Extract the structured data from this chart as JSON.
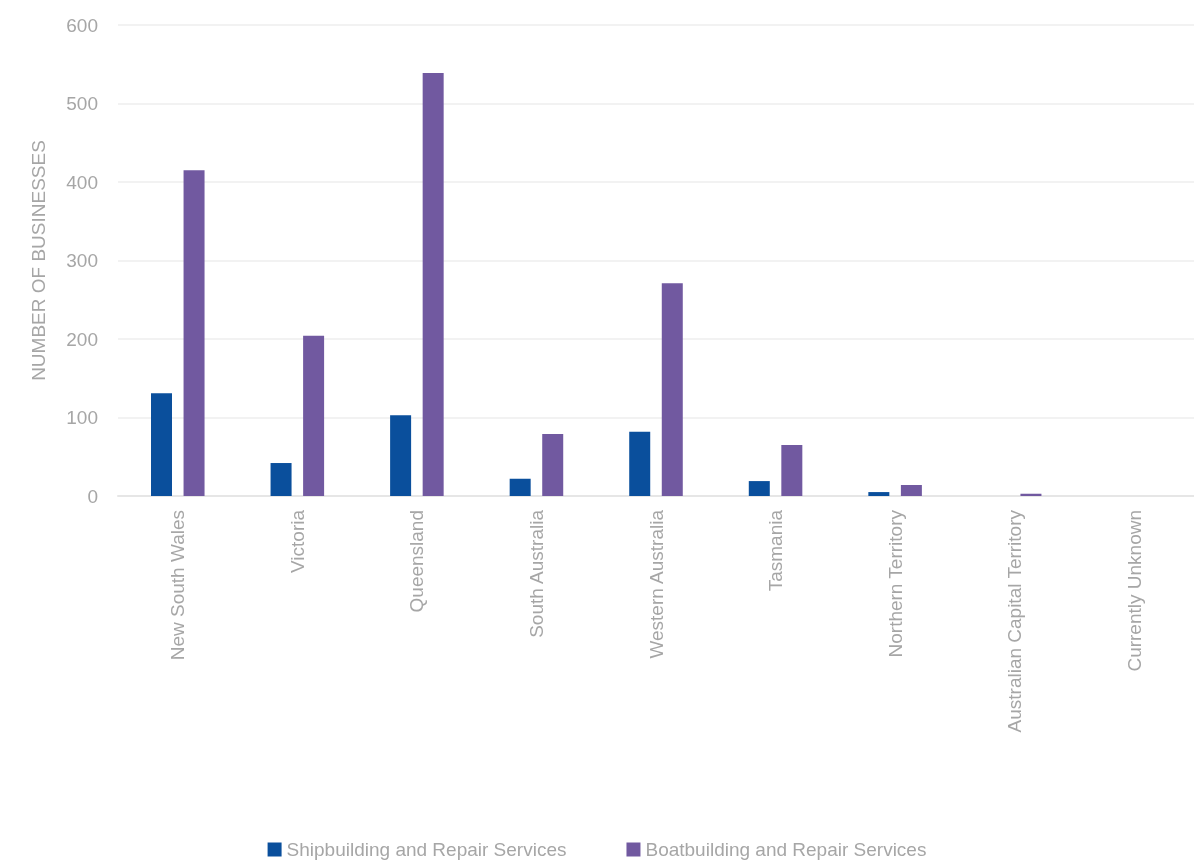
{
  "chart_data": {
    "type": "bar",
    "ylabel": "NUMBER OF BUSINESSES",
    "categories": [
      "New South Wales",
      "Victoria",
      "Queensland",
      "South Australia",
      "Western Australia",
      "Tasmania",
      "Northern Territory",
      "Australian Capital Territory",
      "Currently Unknown"
    ],
    "series": [
      {
        "name": "Shipbuilding and Repair Services",
        "color": "#0a4f9c",
        "values": [
          131,
          42,
          103,
          22,
          82,
          19,
          5,
          0,
          0
        ]
      },
      {
        "name": "Boatbuilding and Repair Services",
        "color": "#7159a0",
        "values": [
          415,
          204,
          539,
          79,
          271,
          65,
          14,
          3,
          0
        ]
      }
    ],
    "ylim": [
      0,
      600
    ],
    "yticks": [
      0,
      100,
      200,
      300,
      400,
      500,
      600
    ],
    "grid": "y",
    "legend": "bottom"
  }
}
